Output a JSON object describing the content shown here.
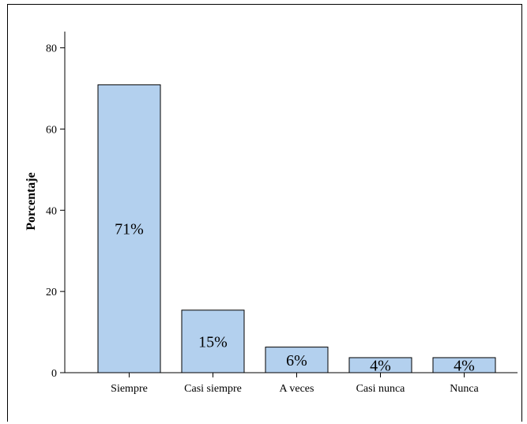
{
  "chart_data": {
    "type": "bar",
    "title": "",
    "xlabel": "",
    "ylabel": "Porcentaje",
    "categories": [
      "Siempre",
      "Casi siempre",
      "A veces",
      "Casi nunca",
      "Nunca"
    ],
    "values": [
      70.9,
      15.4,
      6.3,
      3.7,
      3.7
    ],
    "data_labels": [
      "71%",
      "15%",
      "6%",
      "4%",
      "4%"
    ],
    "ylim": [
      0,
      84
    ],
    "yticks": [
      0,
      20,
      40,
      60,
      80
    ],
    "grid": false,
    "legend": "none",
    "bar_color": "#b3d0ee",
    "bar_edge_color": "#000000"
  }
}
